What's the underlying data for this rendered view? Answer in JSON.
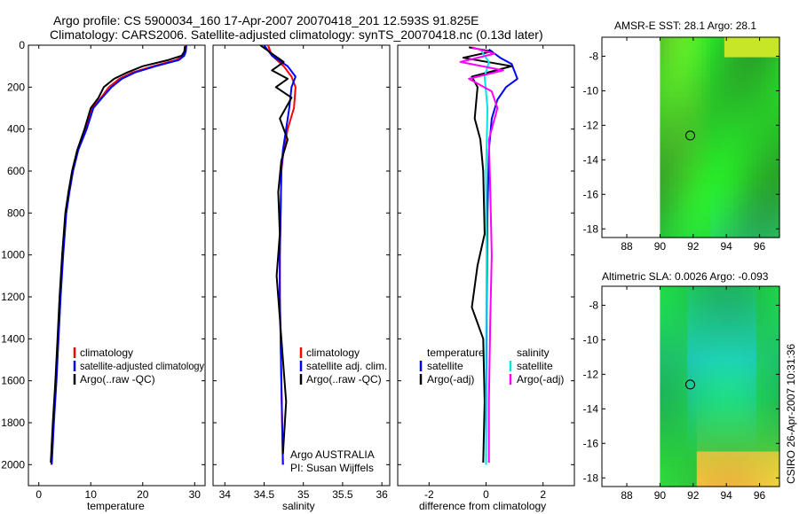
{
  "header": {
    "line1": "Argo profile: CS 5900034_160 17-Apr-2007 20070418_201 12.593S 91.825E",
    "line2": "Climatology: CARS2006. Satellite-adjusted climatology: synTS_20070418.nc (0.13d later)"
  },
  "colors": {
    "climatology": "#ff0000",
    "satellite": "#0000ff",
    "argo": "#000000",
    "salinity_satellite": "#00e5e5",
    "salinity_argo": "#ff00ff"
  },
  "chart_data": [
    {
      "type": "line",
      "id": "temperature",
      "xlabel": "temperature",
      "xlim": [
        -2,
        32
      ],
      "xticks": [
        "0",
        "10",
        "20",
        "30"
      ],
      "ylim": [
        2100,
        0
      ],
      "yticks": [
        "0",
        "200",
        "400",
        "600",
        "800",
        "1000",
        "1200",
        "1400",
        "1600",
        "1800",
        "2000"
      ],
      "legend": [
        "climatology",
        "satellite-adjusted climatology",
        "Argo(..raw -QC)"
      ],
      "series": [
        {
          "name": "climatology",
          "color": "#ff0000",
          "x": [
            28.2,
            28.1,
            27.8,
            26.5,
            22,
            18,
            15.5,
            13.5,
            12,
            10.3,
            9,
            7.5,
            6.5,
            5.8,
            5.2,
            4.6,
            4.1,
            3.7,
            3.3,
            2.8,
            2.4
          ],
          "y": [
            0,
            30,
            50,
            70,
            100,
            130,
            160,
            200,
            250,
            300,
            400,
            500,
            600,
            700,
            800,
            1000,
            1200,
            1400,
            1600,
            1800,
            2000
          ]
        },
        {
          "name": "satellite",
          "color": "#0000ff",
          "x": [
            28.4,
            28.3,
            28,
            27,
            22.5,
            18.5,
            16,
            14,
            12.2,
            10.5,
            9.2,
            7.6,
            6.6,
            5.9,
            5.3,
            4.7,
            4.2,
            3.8,
            3.4,
            2.9,
            2.5
          ],
          "y": [
            0,
            30,
            50,
            70,
            100,
            130,
            160,
            200,
            250,
            300,
            400,
            500,
            600,
            700,
            800,
            1000,
            1200,
            1400,
            1600,
            1800,
            2000
          ]
        },
        {
          "name": "argo",
          "color": "#000000",
          "x": [
            28.1,
            28,
            27.5,
            25,
            20,
            17,
            14.5,
            12.5,
            11.5,
            10,
            8.8,
            7.4,
            6.4,
            5.7,
            5.1,
            4.5,
            4,
            3.6,
            3.2,
            2.7,
            2.3
          ],
          "y": [
            5,
            30,
            50,
            70,
            100,
            130,
            160,
            200,
            250,
            300,
            400,
            500,
            600,
            700,
            800,
            1000,
            1200,
            1400,
            1600,
            1800,
            1990
          ]
        }
      ]
    },
    {
      "type": "line",
      "id": "salinity",
      "xlabel": "salinity",
      "xlim": [
        33.85,
        36.1
      ],
      "xticks": [
        "34",
        "34.5",
        "35",
        "35.5",
        "36"
      ],
      "ylim": [
        2100,
        0
      ],
      "legend": [
        "climatology",
        "satellite adj. clim.",
        "Argo(..raw -QC)"
      ],
      "annotation": [
        "Argo AUSTRALIA",
        "PI: Susan Wijffels"
      ],
      "series": [
        {
          "name": "climatology",
          "color": "#ff0000",
          "x": [
            34.55,
            34.6,
            34.75,
            34.85,
            34.9,
            34.88,
            34.8,
            34.75,
            34.72,
            34.71,
            34.7,
            34.7,
            34.71,
            34.72,
            34.73,
            34.74
          ],
          "y": [
            0,
            50,
            100,
            150,
            200,
            300,
            400,
            500,
            600,
            800,
            1000,
            1200,
            1400,
            1600,
            1800,
            2000
          ]
        },
        {
          "name": "satellite",
          "color": "#0000ff",
          "x": [
            34.5,
            34.6,
            34.8,
            34.9,
            34.85,
            34.82,
            34.78,
            34.74,
            34.72,
            34.71,
            34.7,
            34.7,
            34.71,
            34.72,
            34.73,
            34.74
          ],
          "y": [
            0,
            50,
            100,
            150,
            200,
            300,
            400,
            500,
            600,
            800,
            1000,
            1200,
            1400,
            1600,
            1800,
            2000
          ]
        },
        {
          "name": "argo",
          "color": "#000000",
          "x": [
            34.45,
            34.6,
            34.75,
            34.6,
            34.8,
            34.65,
            34.85,
            34.7,
            34.8,
            34.72,
            34.68,
            34.7,
            34.66,
            34.7,
            34.74,
            34.78,
            34.74
          ],
          "y": [
            0,
            40,
            80,
            120,
            160,
            200,
            250,
            350,
            450,
            550,
            700,
            900,
            1100,
            1300,
            1500,
            1700,
            1950
          ]
        }
      ]
    },
    {
      "type": "line",
      "id": "difference",
      "xlabel": "difference from climatology",
      "xlim": [
        -3.1,
        3.1
      ],
      "xticks": [
        "-2",
        "0",
        "2"
      ],
      "ylim": [
        2100,
        0
      ],
      "legend_headers": [
        "temperature",
        "salinity"
      ],
      "legend": [
        "satellite",
        "Argo(-adj)",
        "satellite",
        "Argo(-adj)"
      ],
      "series": [
        {
          "name": "temperature satellite",
          "color": "#0000ff",
          "x": [
            0.1,
            0.3,
            0.5,
            0.9,
            1.1,
            0.7,
            0.4,
            0.2,
            0.1,
            0.05,
            0.02,
            0.0
          ],
          "y": [
            20,
            40,
            60,
            90,
            160,
            200,
            260,
            350,
            500,
            800,
            1300,
            2000
          ]
        },
        {
          "name": "temperature argo",
          "color": "#000000",
          "x": [
            -0.6,
            0.2,
            -0.8,
            0.9,
            -0.5,
            -0.3,
            -0.4,
            -0.2,
            -0.1,
            -0.05,
            -0.3,
            -0.5,
            -0.1,
            -0.05,
            -0.1
          ],
          "y": [
            10,
            30,
            60,
            100,
            150,
            200,
            350,
            450,
            600,
            900,
            1050,
            1250,
            1400,
            1700,
            1990
          ]
        },
        {
          "name": "salinity satellite",
          "color": "#00e5e5",
          "x": [
            -0.2,
            0.1,
            -0.05,
            0.05,
            0.0,
            0.02,
            0.0,
            0.0
          ],
          "y": [
            20,
            80,
            150,
            300,
            600,
            1000,
            1500,
            2000
          ]
        },
        {
          "name": "salinity argo",
          "color": "#ff00ff",
          "x": [
            -0.5,
            0.3,
            -0.9,
            0.6,
            -0.6,
            0.2,
            0.4,
            0.1,
            0.15,
            0.2,
            0.15,
            0.1,
            0.1
          ],
          "y": [
            10,
            40,
            80,
            120,
            160,
            220,
            300,
            450,
            700,
            1000,
            1300,
            1700,
            1990
          ]
        }
      ]
    },
    {
      "type": "heatmap",
      "id": "sst-map",
      "title": "AMSR-E SST: 28.1 Argo: 28.1",
      "xlim": [
        86.5,
        97.2
      ],
      "ylim": [
        -18.5,
        -6.9
      ],
      "xticks": [
        "88",
        "90",
        "92",
        "94",
        "96"
      ],
      "yticks": [
        "-8",
        "-10",
        "-12",
        "-14",
        "-16",
        "-18"
      ],
      "data_xrange": [
        90,
        97.2
      ],
      "marker": {
        "lon": 91.825,
        "lat": -12.593
      }
    },
    {
      "type": "heatmap",
      "id": "sla-map",
      "title": "Altimetric SLA: 0.0026 Argo: -0.093",
      "xlim": [
        86.5,
        97.2
      ],
      "ylim": [
        -18.5,
        -6.9
      ],
      "xticks": [
        "88",
        "90",
        "92",
        "94",
        "96"
      ],
      "yticks": [
        "-8",
        "-10",
        "-12",
        "-14",
        "-16",
        "-18"
      ],
      "data_xrange": [
        90,
        97.2
      ],
      "marker": {
        "lon": 91.825,
        "lat": -12.593
      }
    }
  ],
  "footer": {
    "credit": "CSIRO 26-Apr-2007 10:31:36"
  }
}
